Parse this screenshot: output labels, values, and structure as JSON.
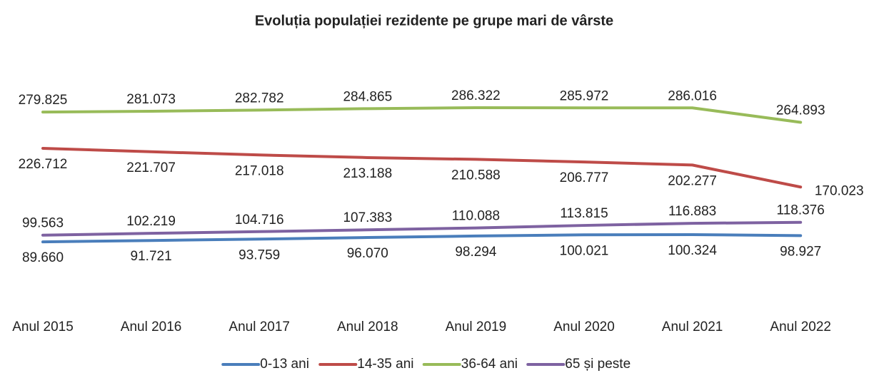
{
  "chart_data": {
    "type": "line",
    "title": "Evoluția populației rezidente pe grupe mari de vârste",
    "categories": [
      "Anul 2015",
      "Anul 2016",
      "Anul 2017",
      "Anul 2018",
      "Anul 2019",
      "Anul 2020",
      "Anul 2021",
      "Anul 2022"
    ],
    "ylim": [
      0,
      350000
    ],
    "legend": "bottom",
    "series": [
      {
        "name": "0-13 ani",
        "color": "#4a7ebb",
        "values": [
          89660,
          91721,
          93759,
          96070,
          98294,
          100021,
          100324,
          98927
        ],
        "value_labels": [
          "89.660",
          "91.721",
          "93.759",
          "96.070",
          "98.294",
          "100.021",
          "100.324",
          "98.927"
        ]
      },
      {
        "name": "14-35 ani",
        "color": "#be4b48",
        "values": [
          226712,
          221707,
          217018,
          213188,
          210588,
          206777,
          202277,
          170023
        ],
        "value_labels": [
          "226.712",
          "221.707",
          "217.018",
          "213.188",
          "210.588",
          "206.777",
          "202.277",
          "170.023"
        ]
      },
      {
        "name": "36-64 ani",
        "color": "#98bb59",
        "values": [
          279825,
          281073,
          282782,
          284865,
          286322,
          285972,
          286016,
          264893
        ],
        "value_labels": [
          "279.825",
          "281.073",
          "282.782",
          "284.865",
          "286.322",
          "285.972",
          "286.016",
          "264.893"
        ]
      },
      {
        "name": "65 și peste",
        "color": "#7e62a1",
        "values": [
          99563,
          102219,
          104716,
          107383,
          110088,
          113815,
          116883,
          118376
        ],
        "value_labels": [
          "99.563",
          "102.219",
          "104.716",
          "107.383",
          "110.088",
          "113.815",
          "116.883",
          "118.376"
        ]
      }
    ]
  }
}
